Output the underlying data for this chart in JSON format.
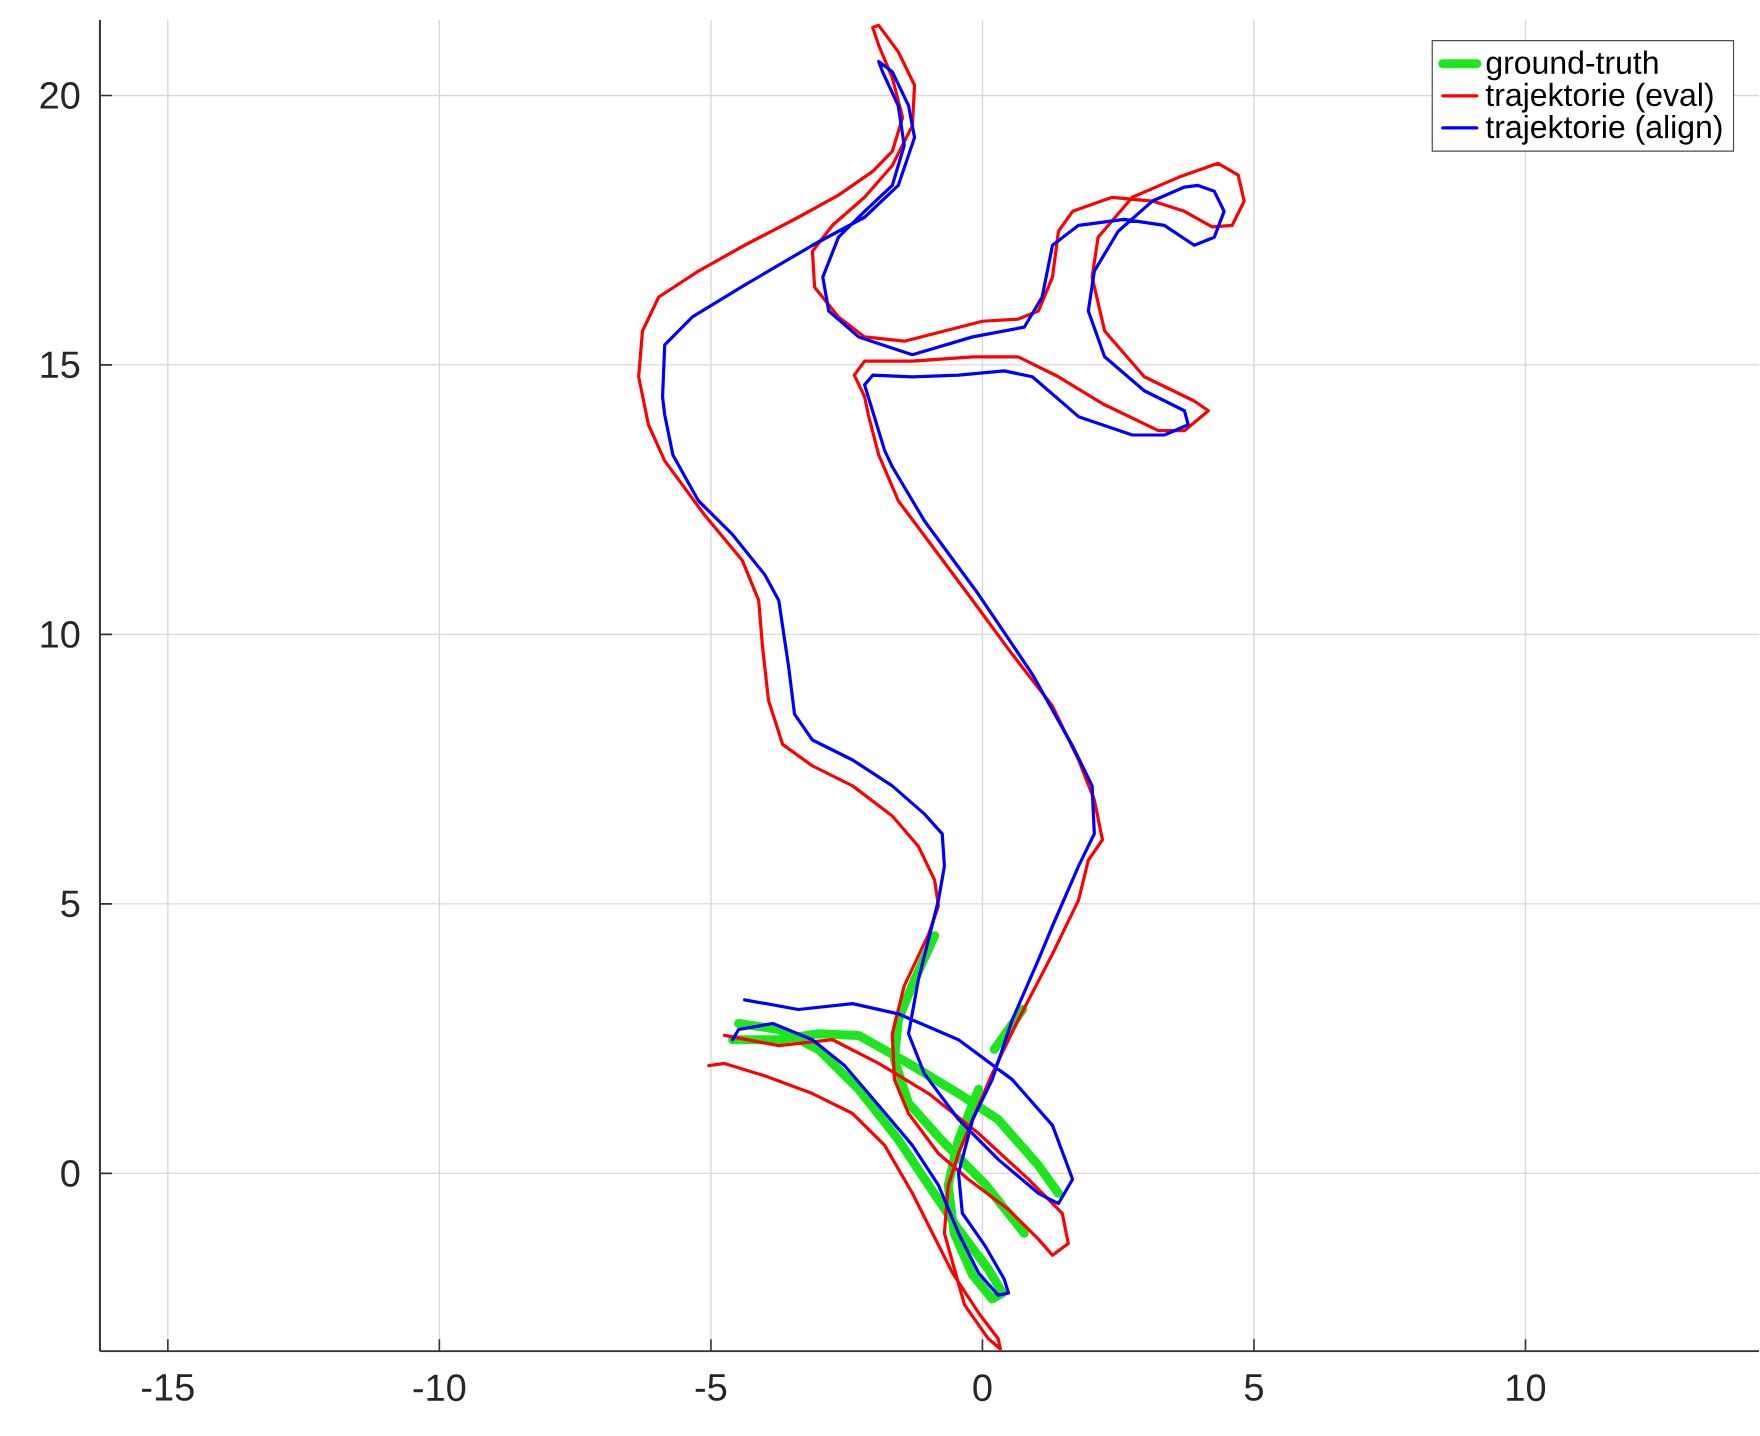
{
  "chart_data": {
    "type": "line",
    "xlim": [
      -16.25,
      14.3
    ],
    "ylim": [
      -3.3,
      21.4
    ],
    "xticks": [
      -15,
      -10,
      -5,
      0,
      5,
      10
    ],
    "yticks": [
      0,
      5,
      10,
      15,
      20
    ],
    "grid": true,
    "legend": "top right",
    "marker": "none",
    "line_style": "solid",
    "series": [
      {
        "name": "ground-truth",
        "color": "#1ee61e",
        "x": [
          -0.88,
          -1.25,
          -1.55,
          -1.62,
          -1.36,
          -0.7,
          0.04,
          0.77,
          null,
          -4.6,
          -3.75,
          -3.02,
          -2.28,
          -1.36,
          -0.44,
          0.29,
          1.03,
          1.4,
          null,
          -4.49,
          -3.75,
          -3.02,
          -2.28,
          -1.55,
          -0.99,
          -0.44,
          0.11,
          0.37,
          0.18,
          -0.18,
          -0.52,
          -0.63,
          -0.44,
          -0.07,
          null,
          0.22,
          0.74
        ],
        "values": [
          4.41,
          3.59,
          2.85,
          2.11,
          1.3,
          0.56,
          -0.19,
          -1.11,
          null,
          2.48,
          2.48,
          2.59,
          2.56,
          2.04,
          1.48,
          1.0,
          0.15,
          -0.37,
          null,
          2.78,
          2.67,
          2.3,
          1.56,
          0.63,
          -0.22,
          -1.04,
          -1.78,
          -2.22,
          -2.33,
          -1.89,
          -1.11,
          -0.22,
          0.63,
          1.56,
          null,
          2.3,
          3.04
        ]
      },
      {
        "name": "trajektorie (eval)",
        "color": "#ff0000",
        "x": [
          -5.04,
          -4.75,
          -4.01,
          -3.13,
          -2.39,
          -1.8,
          -1.29,
          -0.55,
          -0.07,
          0.29,
          0.33,
          0.11,
          -0.33,
          -0.7,
          -0.63,
          -0.44,
          -0.18,
          0.18,
          0.66,
          1.29,
          1.77,
          1.95,
          2.21,
          2.06,
          1.77,
          1.29,
          0.55,
          -0.18,
          -0.92,
          -1.55,
          -1.91,
          -2.1,
          -2.17,
          -2.36,
          -2.17,
          -1.29,
          -0.18,
          0.66,
          1.4,
          2.25,
          3.24,
          3.72,
          4.16,
          3.9,
          2.98,
          2.25,
          2.02,
          2.13,
          2.76,
          3.61,
          4.34,
          4.71,
          4.82,
          4.6,
          4.23,
          3.72,
          3.13,
          2.39,
          1.66,
          1.4,
          1.29,
          1.03,
          0.66,
          0.0,
          -0.7,
          -1.44,
          -2.17,
          -2.65,
          -3.09,
          -3.13,
          -2.76,
          -2.17,
          -1.66,
          -1.29,
          -1.25,
          -1.55,
          -1.91,
          -2.02,
          -1.91,
          -1.66,
          -1.47,
          -1.66,
          -2.02,
          -2.65,
          -3.39,
          -4.38,
          -5.23,
          -5.96,
          -6.26,
          -6.33,
          -6.15,
          -5.85,
          -5.12,
          -4.42,
          -4.12,
          -4.05,
          -3.94,
          -3.68,
          -3.13,
          -2.39,
          -1.66,
          -1.18,
          -0.88,
          -0.81,
          -0.99,
          -1.44,
          -1.66,
          -1.62,
          -1.36,
          -0.81,
          -0.26,
          0.48,
          1.03,
          1.29,
          1.58,
          1.47,
          0.85,
          -0.07,
          -0.99,
          -1.91,
          -2.76,
          -3.75,
          -4.75
        ],
        "values": [
          2.0,
          2.04,
          1.81,
          1.48,
          1.11,
          0.52,
          -0.37,
          -1.85,
          -2.59,
          -3.07,
          -3.26,
          -3.07,
          -2.44,
          -1.11,
          -0.22,
          0.37,
          1.0,
          1.85,
          2.85,
          4.07,
          5.07,
          5.81,
          6.19,
          6.93,
          7.67,
          8.67,
          9.63,
          10.63,
          11.63,
          12.48,
          13.33,
          14.07,
          14.41,
          14.81,
          15.07,
          15.07,
          15.15,
          15.15,
          14.78,
          14.26,
          13.78,
          13.78,
          14.15,
          14.33,
          14.78,
          15.63,
          16.63,
          17.37,
          18.11,
          18.48,
          18.74,
          18.52,
          18.04,
          17.59,
          17.56,
          17.85,
          18.04,
          18.11,
          17.85,
          17.48,
          16.63,
          16.0,
          15.85,
          15.81,
          15.63,
          15.44,
          15.52,
          15.89,
          16.44,
          17.11,
          17.59,
          18.11,
          18.7,
          19.44,
          20.19,
          20.81,
          21.3,
          21.26,
          20.93,
          20.33,
          19.59,
          18.96,
          18.59,
          18.15,
          17.74,
          17.22,
          16.74,
          16.26,
          15.63,
          14.78,
          13.89,
          13.22,
          12.22,
          11.37,
          10.63,
          9.78,
          8.78,
          7.96,
          7.56,
          7.19,
          6.63,
          6.07,
          5.44,
          4.96,
          4.44,
          3.48,
          2.59,
          1.74,
          1.11,
          0.37,
          -0.11,
          -0.67,
          -1.22,
          -1.52,
          -1.3,
          -0.74,
          -0.11,
          0.74,
          1.48,
          2.04,
          2.48,
          2.37,
          2.56
        ]
      },
      {
        "name": "trajektorie (align)",
        "color": "#0000ff",
        "x": [
          -4.38,
          -3.39,
          -2.39,
          -1.55,
          -0.44,
          0.55,
          1.29,
          1.66,
          1.4,
          1.03,
          0.29,
          -0.44,
          -1.07,
          -1.36,
          -1.18,
          -0.81,
          -0.7,
          -0.74,
          -1.07,
          -1.66,
          -2.39,
          -3.13,
          -3.46,
          -3.57,
          -3.75,
          -4.01,
          -4.6,
          -5.23,
          -5.7,
          -5.85,
          -5.89,
          -5.85,
          -5.34,
          -4.38,
          -3.13,
          -2.17,
          -1.55,
          -1.25,
          -1.36,
          -1.66,
          -1.91,
          -1.84,
          -1.55,
          -1.44,
          -1.66,
          -2.17,
          -2.65,
          -2.94,
          -2.83,
          -2.28,
          -1.29,
          -0.18,
          0.77,
          1.1,
          1.29,
          1.77,
          2.61,
          3.35,
          3.9,
          4.27,
          4.45,
          4.27,
          3.97,
          3.72,
          3.13,
          2.5,
          2.06,
          1.95,
          2.25,
          2.98,
          3.72,
          3.79,
          3.35,
          2.76,
          1.77,
          0.92,
          0.4,
          -0.44,
          -1.29,
          -2.02,
          -2.17,
          -1.99,
          -1.8,
          -1.66,
          -1.07,
          -0.07,
          0.92,
          1.66,
          2.02,
          2.06,
          1.77,
          1.29,
          1.03,
          0.55,
          0.18,
          -0.18,
          -0.44,
          -0.37,
          0.04,
          0.4,
          0.48,
          0.29,
          -0.07,
          -0.44,
          -0.81,
          -1.29,
          -1.91,
          -2.54,
          -3.13,
          -3.86,
          -4.49,
          -4.6
        ],
        "values": [
          3.22,
          3.04,
          3.15,
          2.96,
          2.48,
          1.74,
          0.89,
          -0.11,
          -0.56,
          -0.37,
          0.26,
          1.0,
          1.85,
          2.59,
          3.59,
          5.07,
          5.7,
          6.3,
          6.67,
          7.19,
          7.67,
          8.04,
          8.52,
          9.41,
          10.63,
          11.11,
          11.85,
          12.48,
          13.33,
          14.07,
          14.41,
          15.37,
          15.89,
          16.48,
          17.22,
          17.74,
          18.33,
          19.22,
          19.81,
          20.44,
          20.63,
          20.44,
          19.81,
          19.07,
          18.33,
          17.85,
          17.37,
          16.63,
          16.0,
          15.52,
          15.19,
          15.52,
          15.7,
          16.26,
          17.22,
          17.59,
          17.7,
          17.59,
          17.22,
          17.37,
          17.85,
          18.22,
          18.33,
          18.3,
          18.04,
          17.48,
          16.74,
          16.0,
          15.15,
          14.52,
          14.15,
          13.89,
          13.7,
          13.7,
          14.04,
          14.78,
          14.89,
          14.81,
          14.78,
          14.81,
          14.63,
          14.04,
          13.41,
          13.11,
          12.11,
          10.74,
          9.26,
          7.93,
          7.19,
          6.3,
          5.7,
          4.59,
          3.96,
          2.85,
          1.74,
          1.0,
          0.0,
          -0.74,
          -1.33,
          -1.96,
          -2.22,
          -2.26,
          -1.85,
          -1.11,
          -0.22,
          0.52,
          1.26,
          2.0,
          2.48,
          2.78,
          2.67,
          2.48
        ]
      }
    ]
  }
}
